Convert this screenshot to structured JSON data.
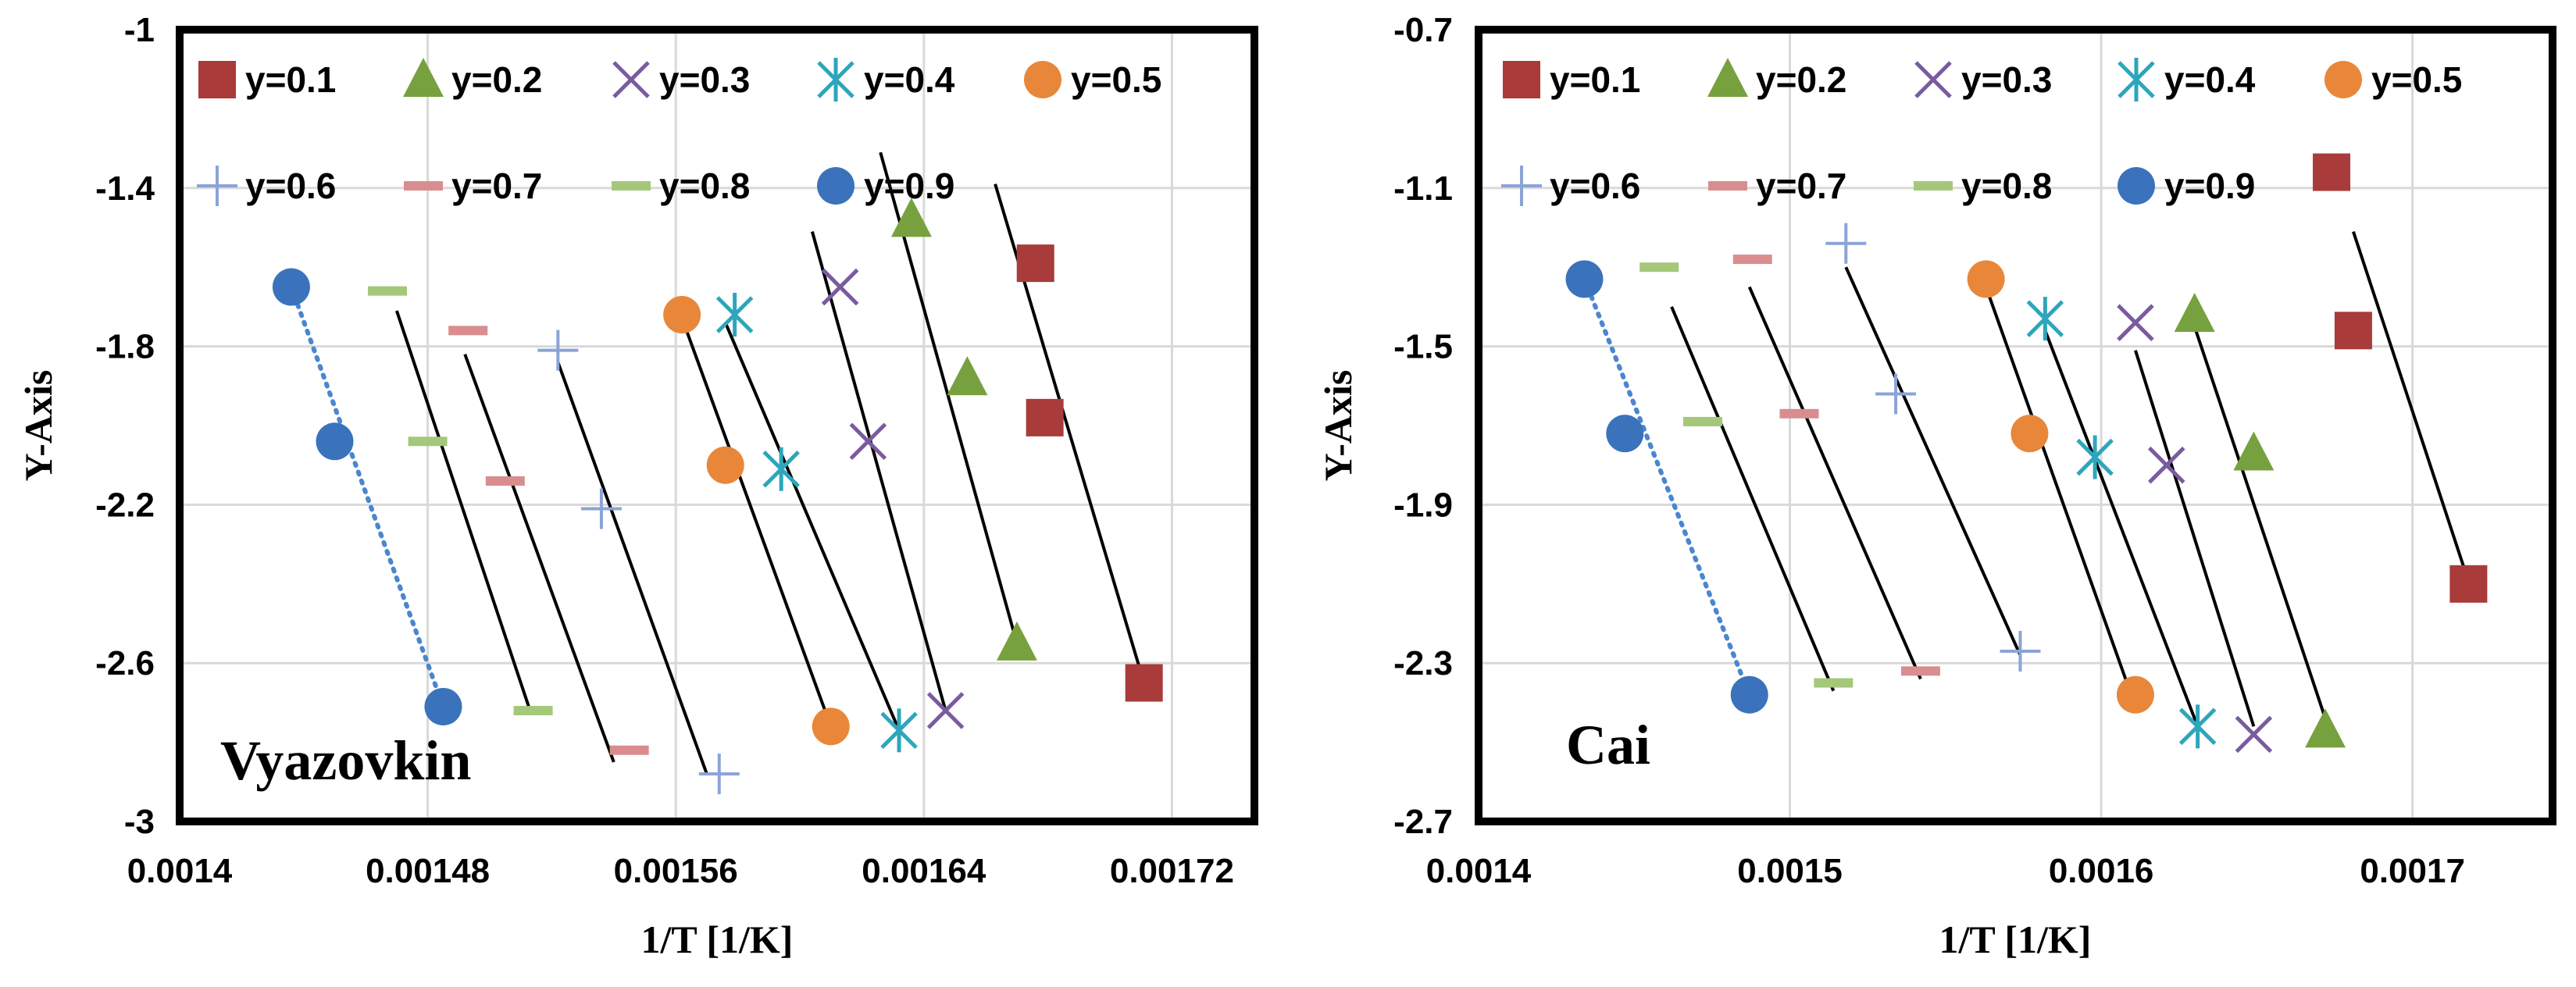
{
  "chart_data": [
    {
      "type": "scatter",
      "panel": "left",
      "annotation": "Vyazovkin",
      "xlabel": "1/T [1/K]",
      "ylabel": "Y-Axis",
      "xlim": [
        0.0014,
        0.0017466
      ],
      "ylim": [
        -3,
        -1
      ],
      "x_ticks": [
        0.0014,
        0.00148,
        0.00156,
        0.00164,
        0.00172
      ],
      "x_tick_labels": [
        "0.0014",
        "0.00148",
        "0.00156",
        "0.00164",
        "0.00172"
      ],
      "y_ticks": [
        -1,
        -1.4,
        -1.8,
        -2.2,
        -2.6,
        -3
      ],
      "y_tick_labels": [
        "-1",
        "-1.4",
        "-1.8",
        "-2.2",
        "-2.6",
        "-3"
      ],
      "grid": true,
      "legend_position": "top",
      "series": [
        {
          "name": "y=0.1",
          "marker": "square",
          "color": "#A93B3B",
          "points": [
            [
              0.001676,
              -1.59
            ],
            [
              0.001679,
              -1.98
            ],
            [
              0.001711,
              -2.65
            ]
          ],
          "line": [
            [
              0.001663,
              -1.39
            ],
            [
              0.001711,
              -2.65
            ]
          ]
        },
        {
          "name": "y=0.2",
          "marker": "triangle",
          "color": "#77A13E",
          "points": [
            [
              0.001636,
              -1.48
            ],
            [
              0.001654,
              -1.88
            ],
            [
              0.00167,
              -2.55
            ]
          ],
          "line": [
            [
              0.001626,
              -1.31
            ],
            [
              0.00167,
              -2.55
            ]
          ]
        },
        {
          "name": "y=0.3",
          "marker": "x",
          "color": "#7A5BA0",
          "points": [
            [
              0.001613,
              -1.65
            ],
            [
              0.001622,
              -2.04
            ],
            [
              0.001647,
              -2.72
            ]
          ],
          "line": [
            [
              0.001604,
              -1.51
            ],
            [
              0.001647,
              -2.72
            ]
          ]
        },
        {
          "name": "y=0.4",
          "marker": "asterisk",
          "color": "#2DA6BC",
          "points": [
            [
              0.001579,
              -1.72
            ],
            [
              0.001594,
              -2.11
            ],
            [
              0.001632,
              -2.77
            ]
          ],
          "line": [
            [
              0.001576,
              -1.74
            ],
            [
              0.001632,
              -2.77
            ]
          ]
        },
        {
          "name": "y=0.5",
          "marker": "circle",
          "color": "#E8873A",
          "points": [
            [
              0.001562,
              -1.72
            ],
            [
              0.001576,
              -2.1
            ],
            [
              0.00161,
              -2.76
            ]
          ],
          "line": [
            [
              0.001563,
              -1.75
            ],
            [
              0.00161,
              -2.76
            ]
          ]
        },
        {
          "name": "y=0.6",
          "marker": "plus",
          "color": "#8BA4D6",
          "points": [
            [
              0.001522,
              -1.81
            ],
            [
              0.001536,
              -2.21
            ],
            [
              0.001574,
              -2.88
            ]
          ],
          "line": [
            [
              0.001522,
              -1.84
            ],
            [
              0.00157,
              -2.88
            ]
          ]
        },
        {
          "name": "y=0.7",
          "marker": "dash",
          "color": "#D98D8F",
          "points": [
            [
              0.001493,
              -1.76
            ],
            [
              0.001505,
              -2.14
            ],
            [
              0.001545,
              -2.82
            ]
          ],
          "line": [
            [
              0.001492,
              -1.82
            ],
            [
              0.00154,
              -2.85
            ]
          ]
        },
        {
          "name": "y=0.8",
          "marker": "dash",
          "color": "#A5C77A",
          "points": [
            [
              0.001467,
              -1.66
            ],
            [
              0.00148,
              -2.04
            ],
            [
              0.001514,
              -2.72
            ]
          ],
          "line": [
            [
              0.00147,
              -1.71
            ],
            [
              0.001513,
              -2.72
            ]
          ]
        },
        {
          "name": "y=0.9",
          "marker": "circle",
          "color": "#3A73BC",
          "points": [
            [
              0.001436,
              -1.65
            ],
            [
              0.00145,
              -2.04
            ],
            [
              0.001485,
              -2.71
            ]
          ],
          "line": [
            [
              0.001436,
              -1.65
            ],
            [
              0.001485,
              -2.71
            ]
          ],
          "line_style": "dotted"
        }
      ]
    },
    {
      "type": "scatter",
      "panel": "right",
      "annotation": "Cai",
      "xlabel": "1/T [1/K]",
      "ylabel": "Y-Axis",
      "xlim": [
        0.0014,
        0.001745
      ],
      "ylim": [
        -2.7,
        -0.7
      ],
      "x_ticks": [
        0.0014,
        0.0015,
        0.0016,
        0.0017
      ],
      "x_tick_labels": [
        "0.0014",
        "0.0015",
        "0.0016",
        "0.0017"
      ],
      "y_ticks": [
        -0.7,
        -1.1,
        -1.5,
        -1.9,
        -2.3,
        -2.7
      ],
      "y_tick_labels": [
        "-0.7",
        "-1.1",
        "-1.5",
        "-1.9",
        "-2.3",
        "-2.7"
      ],
      "grid": true,
      "legend_position": "top",
      "series": [
        {
          "name": "y=0.1",
          "marker": "square",
          "color": "#A93B3B",
          "points": [
            [
              0.001674,
              -1.06
            ],
            [
              0.001681,
              -1.46
            ],
            [
              0.001718,
              -2.1
            ]
          ],
          "line": [
            [
              0.001681,
              -1.21
            ],
            [
              0.001717,
              -2.07
            ]
          ]
        },
        {
          "name": "y=0.2",
          "marker": "triangle",
          "color": "#77A13E",
          "points": [
            [
              0.00163,
              -1.42
            ],
            [
              0.001649,
              -1.77
            ],
            [
              0.001672,
              -2.47
            ]
          ],
          "line": [
            [
              0.00163,
              -1.45
            ],
            [
              0.001672,
              -2.44
            ]
          ]
        },
        {
          "name": "y=0.3",
          "marker": "x",
          "color": "#7A5BA0",
          "points": [
            [
              0.001611,
              -1.44
            ],
            [
              0.001621,
              -1.8
            ],
            [
              0.001649,
              -2.48
            ]
          ],
          "line": [
            [
              0.001611,
              -1.51
            ],
            [
              0.001649,
              -2.46
            ]
          ]
        },
        {
          "name": "y=0.4",
          "marker": "asterisk",
          "color": "#2DA6BC",
          "points": [
            [
              0.001582,
              -1.43
            ],
            [
              0.001598,
              -1.78
            ],
            [
              0.001631,
              -2.46
            ]
          ],
          "line": [
            [
              0.001582,
              -1.46
            ],
            [
              0.001631,
              -2.46
            ]
          ]
        },
        {
          "name": "y=0.5",
          "marker": "circle",
          "color": "#E8873A",
          "points": [
            [
              0.001563,
              -1.33
            ],
            [
              0.001577,
              -1.72
            ],
            [
              0.001611,
              -2.38
            ]
          ],
          "line": [
            [
              0.001563,
              -1.35
            ],
            [
              0.001611,
              -2.41
            ]
          ]
        },
        {
          "name": "y=0.6",
          "marker": "plus",
          "color": "#8BA4D6",
          "points": [
            [
              0.001518,
              -1.24
            ],
            [
              0.001534,
              -1.62
            ],
            [
              0.001574,
              -2.27
            ]
          ],
          "line": [
            [
              0.001518,
              -1.3
            ],
            [
              0.001574,
              -2.28
            ]
          ]
        },
        {
          "name": "y=0.7",
          "marker": "dash",
          "color": "#D98D8F",
          "points": [
            [
              0.001488,
              -1.28
            ],
            [
              0.001503,
              -1.67
            ],
            [
              0.001542,
              -2.32
            ]
          ],
          "line": [
            [
              0.001487,
              -1.35
            ],
            [
              0.001542,
              -2.34
            ]
          ]
        },
        {
          "name": "y=0.8",
          "marker": "dash",
          "color": "#A5C77A",
          "points": [
            [
              0.001458,
              -1.3
            ],
            [
              0.001472,
              -1.69
            ],
            [
              0.001514,
              -2.35
            ]
          ],
          "line": [
            [
              0.001462,
              -1.4
            ],
            [
              0.001514,
              -2.37
            ]
          ]
        },
        {
          "name": "y=0.9",
          "marker": "circle",
          "color": "#3A73BC",
          "points": [
            [
              0.001434,
              -1.33
            ],
            [
              0.001447,
              -1.72
            ],
            [
              0.001487,
              -2.38
            ]
          ],
          "line": [
            [
              0.001434,
              -1.33
            ],
            [
              0.001487,
              -2.38
            ]
          ],
          "line_style": "dotted"
        }
      ]
    }
  ]
}
